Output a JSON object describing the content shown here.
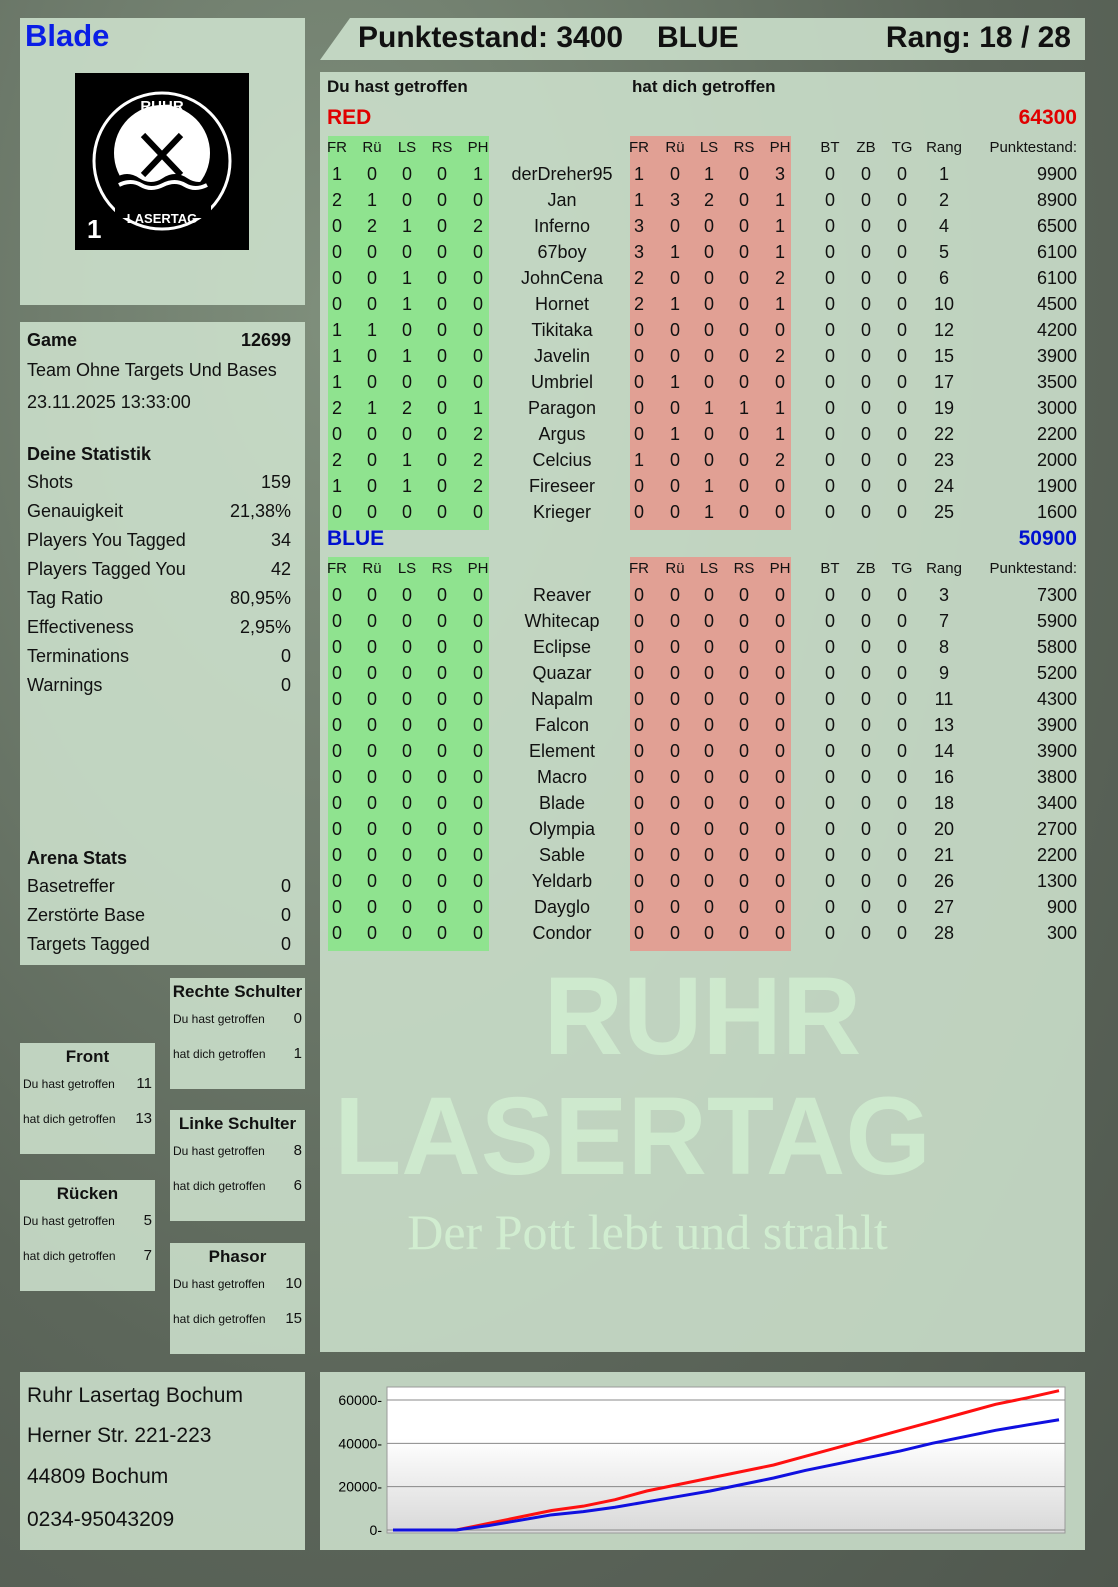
{
  "player": {
    "name": "Blade",
    "score_label": "Punktestand: 3400",
    "team": "BLUE",
    "rank_label": "Rang: 18 / 28"
  },
  "logo": {
    "text_top": "RUHR",
    "text_bottom": "LASERTAG",
    "number": "1"
  },
  "game": {
    "label": "Game",
    "id": "12699",
    "mode": "Team Ohne Targets Und Bases",
    "datetime": "23.11.2025 13:33:00"
  },
  "stats": {
    "title": "Deine Statistik",
    "items": [
      {
        "label": "Shots",
        "value": "159"
      },
      {
        "label": "Genauigkeit",
        "value": "21,38%"
      },
      {
        "label": "Players You Tagged",
        "value": "34"
      },
      {
        "label": "Players Tagged You",
        "value": "42"
      },
      {
        "label": "Tag Ratio",
        "value": "80,95%"
      },
      {
        "label": "Effectiveness",
        "value": "2,95%"
      },
      {
        "label": "Terminations",
        "value": "0"
      },
      {
        "label": "Warnings",
        "value": "0"
      }
    ]
  },
  "arena": {
    "title": "Arena Stats",
    "items": [
      {
        "label": "Basetreffer",
        "value": "0"
      },
      {
        "label": "Zerstörte Base",
        "value": "0"
      },
      {
        "label": "Targets Tagged",
        "value": "0"
      }
    ]
  },
  "zones": [
    {
      "title": "Rechte Schulter",
      "you_hit_label": "Du hast getroffen",
      "you_hit": "0",
      "hit_you_label": "hat dich getroffen",
      "hit_you": "1"
    },
    {
      "title": "Front",
      "you_hit_label": "Du hast getroffen",
      "you_hit": "11",
      "hit_you_label": "hat dich getroffen",
      "hit_you": "13"
    },
    {
      "title": "Linke Schulter",
      "you_hit_label": "Du hast getroffen",
      "you_hit": "8",
      "hit_you_label": "hat dich getroffen",
      "hit_you": "6"
    },
    {
      "title": "Rücken",
      "you_hit_label": "Du hast getroffen",
      "you_hit": "5",
      "hit_you_label": "hat dich getroffen",
      "hit_you": "7"
    },
    {
      "title": "Phasor",
      "you_hit_label": "Du hast getroffen",
      "you_hit": "10",
      "hit_you_label": "hat dich getroffen",
      "hit_you": "15"
    }
  ],
  "address": {
    "lines": [
      "Ruhr Lasertag Bochum",
      "Herner Str. 221-223",
      "44809 Bochum",
      "0234-95043209"
    ]
  },
  "table": {
    "you_hit_title": "Du hast getroffen",
    "hit_you_title": "hat dich getroffen",
    "columns": [
      "FR",
      "Rü",
      "LS",
      "RS",
      "PH",
      "FR",
      "Rü",
      "LS",
      "RS",
      "PH",
      "BT",
      "ZB",
      "TG",
      "Rang",
      "Punktestand:"
    ],
    "teams": [
      {
        "name": "RED",
        "total": "64300",
        "color": "#e00000",
        "rows": [
          {
            "y": [
              "1",
              "0",
              "0",
              "0",
              "1"
            ],
            "n": "derDreher95",
            "h": [
              "1",
              "0",
              "1",
              "0",
              "3"
            ],
            "o": [
              "0",
              "0",
              "0",
              "1",
              "9900"
            ]
          },
          {
            "y": [
              "2",
              "1",
              "0",
              "0",
              "0"
            ],
            "n": "Jan",
            "h": [
              "1",
              "3",
              "2",
              "0",
              "1"
            ],
            "o": [
              "0",
              "0",
              "0",
              "2",
              "8900"
            ]
          },
          {
            "y": [
              "0",
              "2",
              "1",
              "0",
              "2"
            ],
            "n": "Inferno",
            "h": [
              "3",
              "0",
              "0",
              "0",
              "1"
            ],
            "o": [
              "0",
              "0",
              "0",
              "4",
              "6500"
            ]
          },
          {
            "y": [
              "0",
              "0",
              "0",
              "0",
              "0"
            ],
            "n": "67boy",
            "h": [
              "3",
              "1",
              "0",
              "0",
              "1"
            ],
            "o": [
              "0",
              "0",
              "0",
              "5",
              "6100"
            ]
          },
          {
            "y": [
              "0",
              "0",
              "1",
              "0",
              "0"
            ],
            "n": "JohnCena",
            "h": [
              "2",
              "0",
              "0",
              "0",
              "2"
            ],
            "o": [
              "0",
              "0",
              "0",
              "6",
              "6100"
            ]
          },
          {
            "y": [
              "0",
              "0",
              "1",
              "0",
              "0"
            ],
            "n": "Hornet",
            "h": [
              "2",
              "1",
              "0",
              "0",
              "1"
            ],
            "o": [
              "0",
              "0",
              "0",
              "10",
              "4500"
            ]
          },
          {
            "y": [
              "1",
              "1",
              "0",
              "0",
              "0"
            ],
            "n": "Tikitaka",
            "h": [
              "0",
              "0",
              "0",
              "0",
              "0"
            ],
            "o": [
              "0",
              "0",
              "0",
              "12",
              "4200"
            ]
          },
          {
            "y": [
              "1",
              "0",
              "1",
              "0",
              "0"
            ],
            "n": "Javelin",
            "h": [
              "0",
              "0",
              "0",
              "0",
              "2"
            ],
            "o": [
              "0",
              "0",
              "0",
              "15",
              "3900"
            ]
          },
          {
            "y": [
              "1",
              "0",
              "0",
              "0",
              "0"
            ],
            "n": "Umbriel",
            "h": [
              "0",
              "1",
              "0",
              "0",
              "0"
            ],
            "o": [
              "0",
              "0",
              "0",
              "17",
              "3500"
            ]
          },
          {
            "y": [
              "2",
              "1",
              "2",
              "0",
              "1"
            ],
            "n": "Paragon",
            "h": [
              "0",
              "0",
              "1",
              "1",
              "1"
            ],
            "o": [
              "0",
              "0",
              "0",
              "19",
              "3000"
            ]
          },
          {
            "y": [
              "0",
              "0",
              "0",
              "0",
              "2"
            ],
            "n": "Argus",
            "h": [
              "0",
              "1",
              "0",
              "0",
              "1"
            ],
            "o": [
              "0",
              "0",
              "0",
              "22",
              "2200"
            ]
          },
          {
            "y": [
              "2",
              "0",
              "1",
              "0",
              "2"
            ],
            "n": "Celcius",
            "h": [
              "1",
              "0",
              "0",
              "0",
              "2"
            ],
            "o": [
              "0",
              "0",
              "0",
              "23",
              "2000"
            ]
          },
          {
            "y": [
              "1",
              "0",
              "1",
              "0",
              "2"
            ],
            "n": "Fireseer",
            "h": [
              "0",
              "0",
              "1",
              "0",
              "0"
            ],
            "o": [
              "0",
              "0",
              "0",
              "24",
              "1900"
            ]
          },
          {
            "y": [
              "0",
              "0",
              "0",
              "0",
              "0"
            ],
            "n": "Krieger",
            "h": [
              "0",
              "0",
              "1",
              "0",
              "0"
            ],
            "o": [
              "0",
              "0",
              "0",
              "25",
              "1600"
            ]
          }
        ]
      },
      {
        "name": "BLUE",
        "total": "50900",
        "color": "#0010d0",
        "rows": [
          {
            "y": [
              "0",
              "0",
              "0",
              "0",
              "0"
            ],
            "n": "Reaver",
            "h": [
              "0",
              "0",
              "0",
              "0",
              "0"
            ],
            "o": [
              "0",
              "0",
              "0",
              "3",
              "7300"
            ]
          },
          {
            "y": [
              "0",
              "0",
              "0",
              "0",
              "0"
            ],
            "n": "Whitecap",
            "h": [
              "0",
              "0",
              "0",
              "0",
              "0"
            ],
            "o": [
              "0",
              "0",
              "0",
              "7",
              "5900"
            ]
          },
          {
            "y": [
              "0",
              "0",
              "0",
              "0",
              "0"
            ],
            "n": "Eclipse",
            "h": [
              "0",
              "0",
              "0",
              "0",
              "0"
            ],
            "o": [
              "0",
              "0",
              "0",
              "8",
              "5800"
            ]
          },
          {
            "y": [
              "0",
              "0",
              "0",
              "0",
              "0"
            ],
            "n": "Quazar",
            "h": [
              "0",
              "0",
              "0",
              "0",
              "0"
            ],
            "o": [
              "0",
              "0",
              "0",
              "9",
              "5200"
            ]
          },
          {
            "y": [
              "0",
              "0",
              "0",
              "0",
              "0"
            ],
            "n": "Napalm",
            "h": [
              "0",
              "0",
              "0",
              "0",
              "0"
            ],
            "o": [
              "0",
              "0",
              "0",
              "11",
              "4300"
            ]
          },
          {
            "y": [
              "0",
              "0",
              "0",
              "0",
              "0"
            ],
            "n": "Falcon",
            "h": [
              "0",
              "0",
              "0",
              "0",
              "0"
            ],
            "o": [
              "0",
              "0",
              "0",
              "13",
              "3900"
            ]
          },
          {
            "y": [
              "0",
              "0",
              "0",
              "0",
              "0"
            ],
            "n": "Element",
            "h": [
              "0",
              "0",
              "0",
              "0",
              "0"
            ],
            "o": [
              "0",
              "0",
              "0",
              "14",
              "3900"
            ]
          },
          {
            "y": [
              "0",
              "0",
              "0",
              "0",
              "0"
            ],
            "n": "Macro",
            "h": [
              "0",
              "0",
              "0",
              "0",
              "0"
            ],
            "o": [
              "0",
              "0",
              "0",
              "16",
              "3800"
            ]
          },
          {
            "y": [
              "0",
              "0",
              "0",
              "0",
              "0"
            ],
            "n": "Blade",
            "h": [
              "0",
              "0",
              "0",
              "0",
              "0"
            ],
            "o": [
              "0",
              "0",
              "0",
              "18",
              "3400"
            ]
          },
          {
            "y": [
              "0",
              "0",
              "0",
              "0",
              "0"
            ],
            "n": "Olympia",
            "h": [
              "0",
              "0",
              "0",
              "0",
              "0"
            ],
            "o": [
              "0",
              "0",
              "0",
              "20",
              "2700"
            ]
          },
          {
            "y": [
              "0",
              "0",
              "0",
              "0",
              "0"
            ],
            "n": "Sable",
            "h": [
              "0",
              "0",
              "0",
              "0",
              "0"
            ],
            "o": [
              "0",
              "0",
              "0",
              "21",
              "2200"
            ]
          },
          {
            "y": [
              "0",
              "0",
              "0",
              "0",
              "0"
            ],
            "n": "Yeldarb",
            "h": [
              "0",
              "0",
              "0",
              "0",
              "0"
            ],
            "o": [
              "0",
              "0",
              "0",
              "26",
              "1300"
            ]
          },
          {
            "y": [
              "0",
              "0",
              "0",
              "0",
              "0"
            ],
            "n": "Dayglo",
            "h": [
              "0",
              "0",
              "0",
              "0",
              "0"
            ],
            "o": [
              "0",
              "0",
              "0",
              "27",
              "900"
            ]
          },
          {
            "y": [
              "0",
              "0",
              "0",
              "0",
              "0"
            ],
            "n": "Condor",
            "h": [
              "0",
              "0",
              "0",
              "0",
              "0"
            ],
            "o": [
              "0",
              "0",
              "0",
              "28",
              "300"
            ]
          }
        ]
      }
    ]
  },
  "watermark": {
    "line1": "RUHR",
    "line2": "LASERTAG",
    "slogan": "Der Pott lebt und strahlt"
  },
  "chart_data": {
    "type": "line",
    "ylim": [
      0,
      66000
    ],
    "yticks": [
      "0",
      "20000",
      "40000",
      "60000"
    ],
    "grid": true,
    "series": [
      {
        "color": "#ff1010",
        "values": [
          0,
          0,
          0,
          3000,
          6000,
          9000,
          11000,
          14000,
          18000,
          21000,
          24000,
          27000,
          30000,
          34000,
          38000,
          42000,
          46000,
          50000,
          54000,
          58000,
          61000,
          64300
        ]
      },
      {
        "color": "#1010e0",
        "values": [
          0,
          0,
          0,
          2000,
          4500,
          7000,
          8500,
          10500,
          13000,
          15500,
          18000,
          21000,
          24000,
          27500,
          30500,
          33500,
          36500,
          40000,
          43000,
          46000,
          48500,
          50900
        ]
      }
    ]
  }
}
